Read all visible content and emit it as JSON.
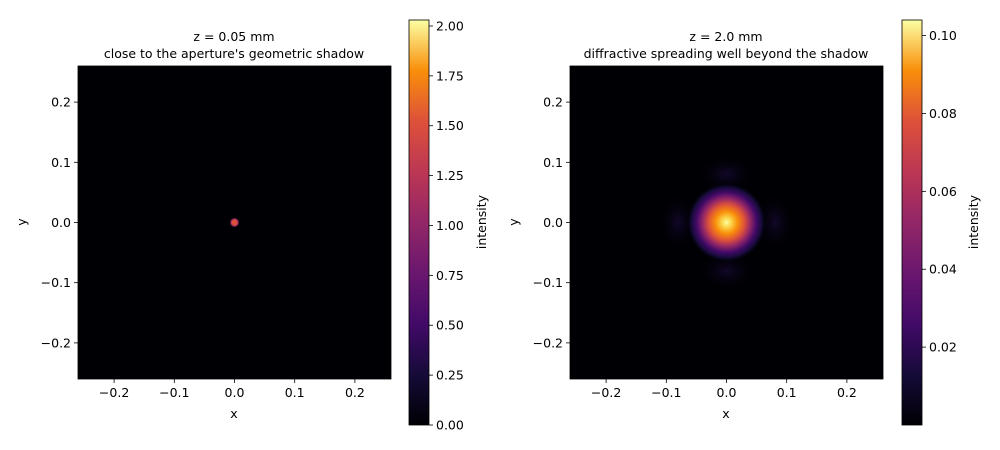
{
  "chart_data": [
    {
      "type": "heatmap",
      "title_line1": "z = 0.05 mm",
      "title_line2": "close to the aperture's geometric shadow",
      "xlabel": "x",
      "ylabel": "y",
      "xlim": [
        -0.26,
        0.26
      ],
      "ylim": [
        -0.26,
        0.26
      ],
      "x_ticks": [
        -0.2,
        -0.1,
        0.0,
        0.1,
        0.2
      ],
      "x_tick_labels": [
        "−0.2",
        "−0.1",
        "0.0",
        "0.1",
        "0.2"
      ],
      "y_ticks": [
        0.2,
        0.1,
        0.0,
        -0.1,
        -0.2
      ],
      "y_tick_labels": [
        "0.2",
        "0.1",
        "0.0",
        "−0.1",
        "−0.2"
      ],
      "colormap": "inferno",
      "colorbar": {
        "label": "intensity",
        "min": 0.0,
        "max": 2.03,
        "ticks": [
          0.0,
          0.25,
          0.5,
          0.75,
          1.0,
          1.25,
          1.5,
          1.75,
          2.0
        ],
        "tick_labels": [
          "0.00",
          "0.25",
          "0.50",
          "0.75",
          "1.00",
          "1.25",
          "1.50",
          "1.75",
          "2.00"
        ]
      },
      "spot": {
        "center": [
          0.0,
          0.0
        ],
        "half_width": 0.008,
        "peak": 2.0
      }
    },
    {
      "type": "heatmap",
      "title_line1": "z = 2.0 mm",
      "title_line2": "diffractive spreading well beyond the shadow",
      "xlabel": "x",
      "ylabel": "y",
      "xlim": [
        -0.26,
        0.26
      ],
      "ylim": [
        -0.26,
        0.26
      ],
      "x_ticks": [
        -0.2,
        -0.1,
        0.0,
        0.1,
        0.2
      ],
      "x_tick_labels": [
        "−0.2",
        "−0.1",
        "0.0",
        "0.1",
        "0.2"
      ],
      "y_ticks": [
        0.2,
        0.1,
        0.0,
        -0.1,
        -0.2
      ],
      "y_tick_labels": [
        "0.2",
        "0.1",
        "0.0",
        "−0.1",
        "−0.2"
      ],
      "colormap": "inferno",
      "colorbar": {
        "label": "intensity",
        "min": 0.0,
        "max": 0.104,
        "ticks": [
          0.02,
          0.04,
          0.06,
          0.08,
          0.1
        ],
        "tick_labels": [
          "0.02",
          "0.04",
          "0.06",
          "0.08",
          "0.10"
        ]
      },
      "spot": {
        "center": [
          0.0,
          0.0
        ],
        "sigma": 0.035,
        "peak": 0.104
      }
    }
  ]
}
